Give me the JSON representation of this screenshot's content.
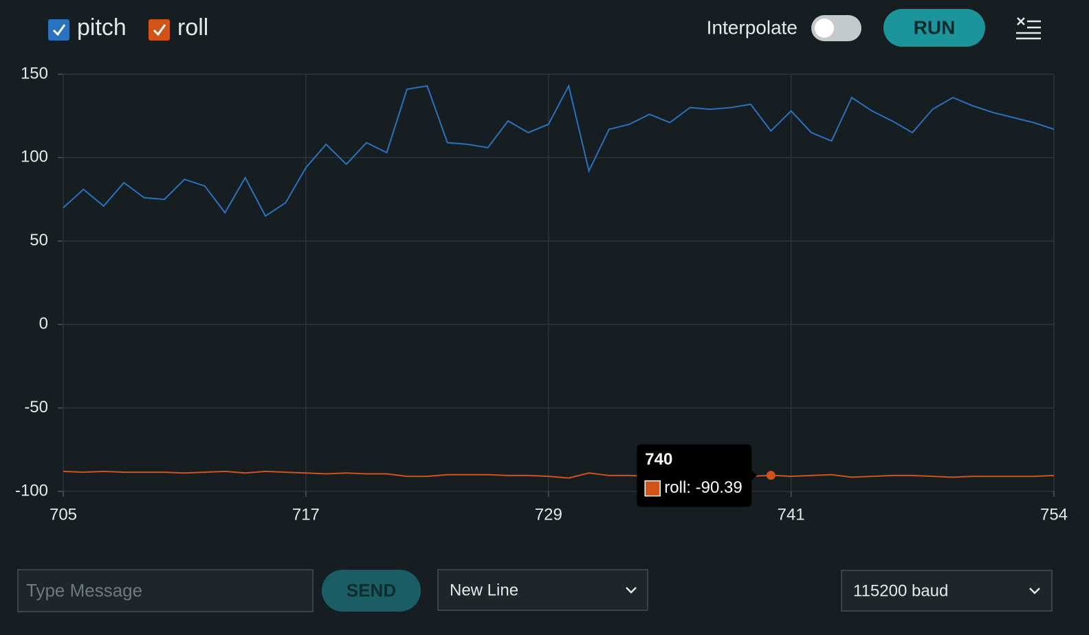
{
  "chart_data": {
    "type": "line",
    "x": [
      705,
      706,
      707,
      708,
      709,
      710,
      711,
      712,
      713,
      714,
      715,
      716,
      717,
      718,
      719,
      720,
      721,
      722,
      723,
      724,
      725,
      726,
      727,
      728,
      729,
      730,
      731,
      732,
      733,
      734,
      735,
      736,
      737,
      738,
      739,
      740,
      741,
      742,
      743,
      744,
      745,
      746,
      747,
      748,
      749,
      750,
      751,
      752,
      753,
      754
    ],
    "series": [
      {
        "name": "pitch",
        "color": "#2a72bd",
        "values": [
          70,
          81,
          71,
          85,
          76,
          75,
          87,
          83,
          67,
          88,
          65,
          73,
          94,
          108,
          96,
          109,
          103,
          141,
          143,
          109,
          108,
          106,
          122,
          115,
          120,
          143,
          92,
          117,
          120,
          126,
          121,
          130,
          129,
          130,
          132,
          116,
          128,
          115,
          110,
          136,
          128,
          122,
          115,
          129,
          136,
          131,
          127,
          124,
          121,
          117
        ]
      },
      {
        "name": "roll",
        "color": "#d0531a",
        "values": [
          -88,
          -88.5,
          -88,
          -88.5,
          -88.5,
          -88.5,
          -89,
          -88.5,
          -88,
          -89,
          -88,
          -88.5,
          -89,
          -89.5,
          -89,
          -89.5,
          -89.5,
          -91,
          -91,
          -90,
          -90,
          -90,
          -90.5,
          -90.5,
          -91,
          -92,
          -89,
          -90.5,
          -90.5,
          -91,
          -91,
          -91,
          -91,
          -91,
          -91,
          -90.39,
          -91,
          -90.5,
          -90,
          -91.5,
          -91,
          -90.5,
          -90.5,
          -91,
          -91.5,
          -91,
          -91,
          -91,
          -91,
          -90.5
        ]
      }
    ],
    "xlim": [
      705,
      754
    ],
    "xticks": [
      705,
      717,
      729,
      741,
      754
    ],
    "ylim": [
      -100,
      150
    ],
    "yticks": [
      150,
      100,
      50,
      0,
      -50,
      -100
    ],
    "grid": true,
    "tooltip": {
      "title": "740",
      "label": "roll: -90.39"
    }
  },
  "ui": {
    "interpolate": "Interpolate",
    "run": "RUN",
    "message_placeholder": "Type Message",
    "send": "SEND",
    "line_ending": "New Line",
    "baud": "115200 baud"
  }
}
